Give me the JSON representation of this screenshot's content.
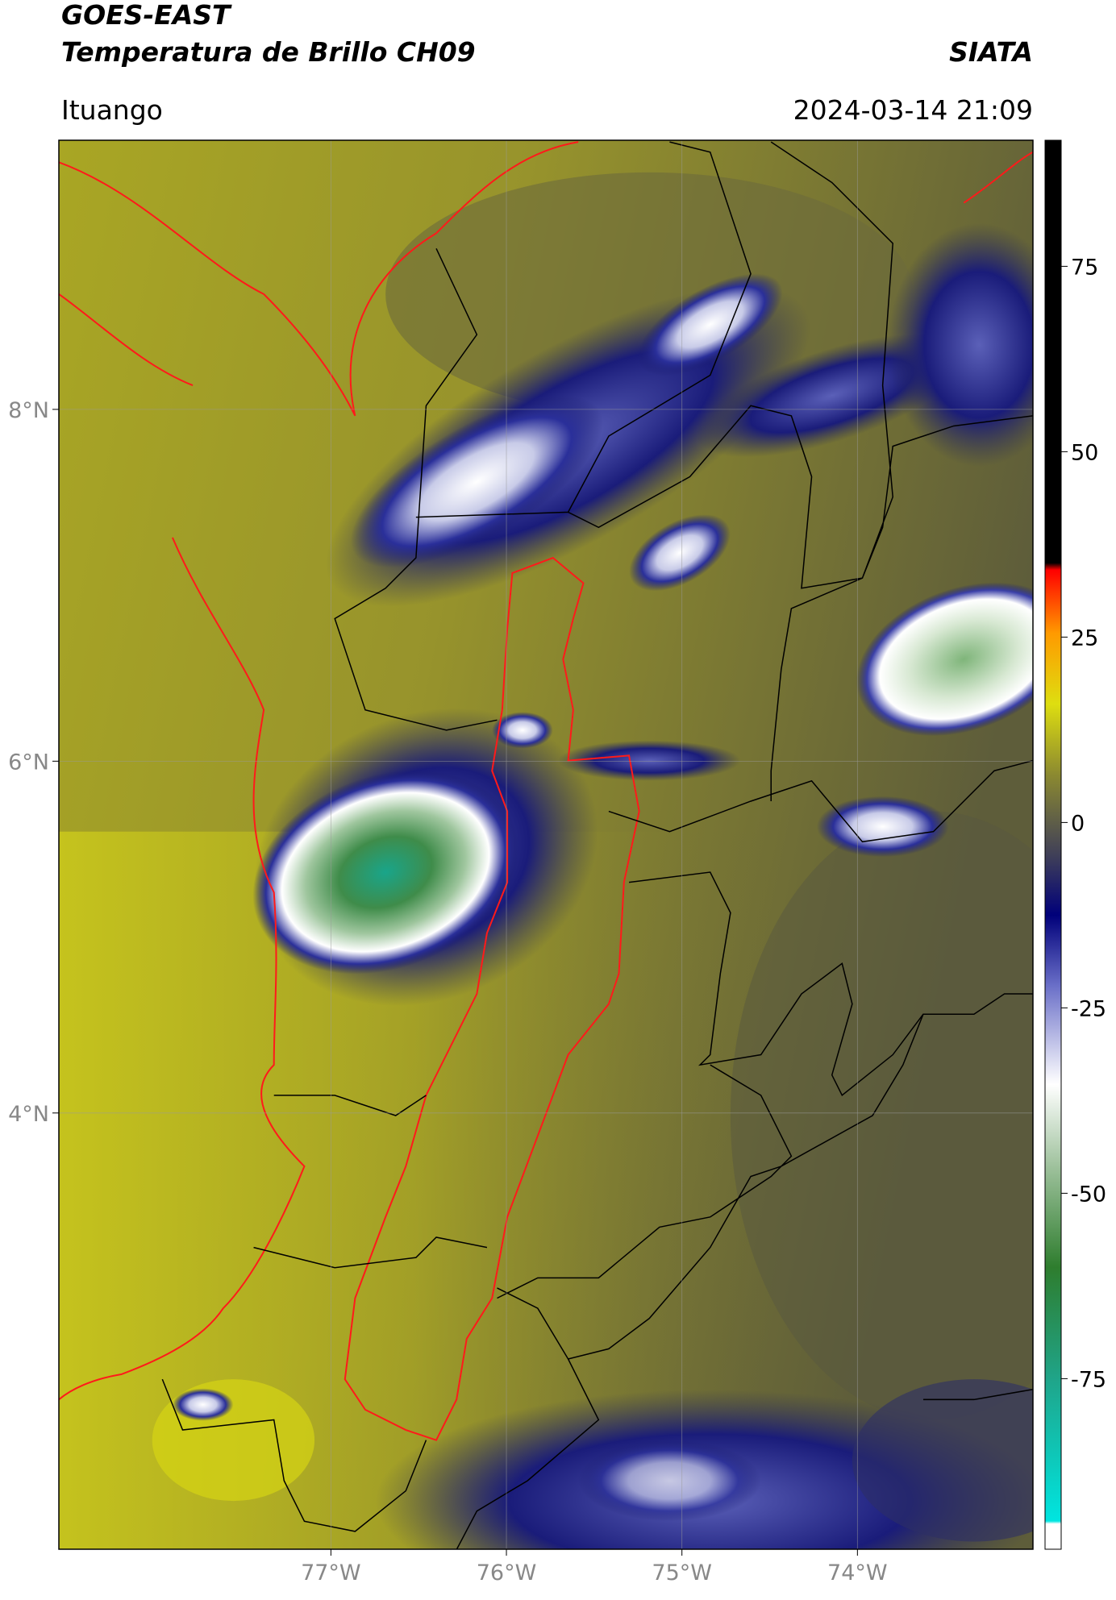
{
  "header": {
    "title": "GOES-EAST",
    "subtitle": "Temperatura de Brillo CH09",
    "brand": "SIATA",
    "location": "Ituango",
    "timestamp": "2024-03-14 21:09"
  },
  "map": {
    "xlim": [
      -78.55,
      -73.0
    ],
    "ylim": [
      1.52,
      9.53
    ],
    "xticks": [
      {
        "value": -77,
        "label": "77°W"
      },
      {
        "value": -76,
        "label": "76°W"
      },
      {
        "value": -75,
        "label": "75°W"
      },
      {
        "value": -74,
        "label": "74°W"
      }
    ],
    "yticks": [
      {
        "value": 8,
        "label": "8°N"
      },
      {
        "value": 6,
        "label": "6°N"
      },
      {
        "value": 4,
        "label": "4°N"
      }
    ]
  },
  "colorbar": {
    "ylim": [
      -98,
      92
    ],
    "yticks": [
      75,
      50,
      25,
      0,
      -25,
      -50,
      -75
    ]
  }
}
